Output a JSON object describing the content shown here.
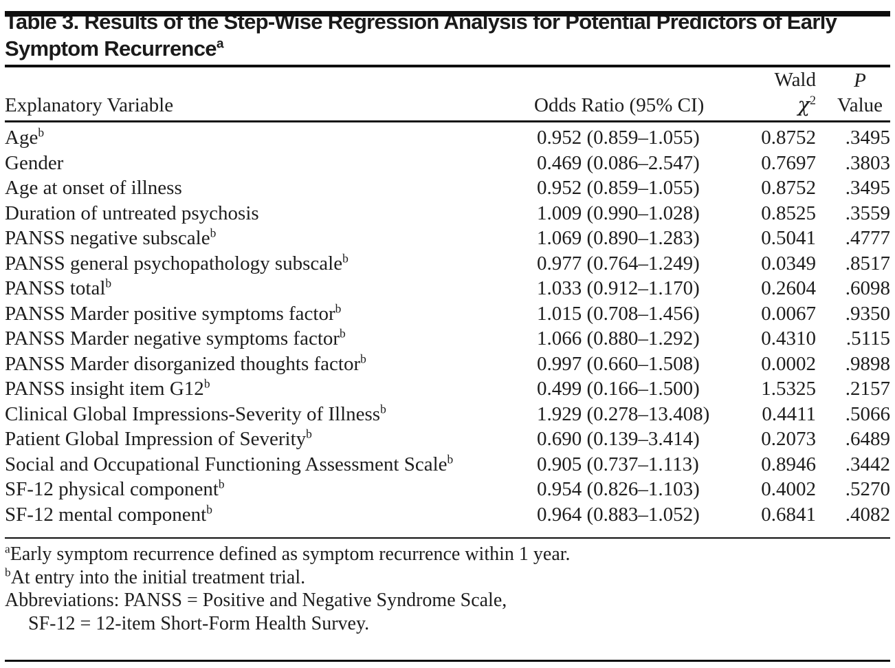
{
  "title": {
    "text": "Table 3. Results of the Step-Wise Regression Analysis for Potential Predictors of Early Symptom Recurrence",
    "sup": "a"
  },
  "headers": {
    "explanatory_variable": "Explanatory Variable",
    "odds_ratio": "Odds Ratio (95% CI)",
    "wald_line1": "Wald",
    "wald_chi": "χ",
    "wald_sup": "2",
    "p_line1": "P",
    "p_line2": "Value"
  },
  "rows": [
    {
      "variable": "Age",
      "sup": "b",
      "odds_ratio": "0.952 (0.859–1.055)",
      "wald_chi2": "0.8752",
      "p_value": ".3495"
    },
    {
      "variable": "Gender",
      "sup": "",
      "odds_ratio": "0.469 (0.086–2.547)",
      "wald_chi2": "0.7697",
      "p_value": ".3803"
    },
    {
      "variable": "Age at onset of illness",
      "sup": "",
      "odds_ratio": "0.952 (0.859–1.055)",
      "wald_chi2": "0.8752",
      "p_value": ".3495"
    },
    {
      "variable": "Duration of untreated psychosis",
      "sup": "",
      "odds_ratio": "1.009 (0.990–1.028)",
      "wald_chi2": "0.8525",
      "p_value": ".3559"
    },
    {
      "variable": "PANSS negative subscale",
      "sup": "b",
      "odds_ratio": "1.069 (0.890–1.283)",
      "wald_chi2": "0.5041",
      "p_value": ".4777"
    },
    {
      "variable": "PANSS general psychopathology subscale",
      "sup": "b",
      "odds_ratio": "0.977 (0.764–1.249)",
      "wald_chi2": "0.0349",
      "p_value": ".8517"
    },
    {
      "variable": "PANSS total",
      "sup": "b",
      "odds_ratio": "1.033 (0.912–1.170)",
      "wald_chi2": "0.2604",
      "p_value": ".6098"
    },
    {
      "variable": "PANSS Marder positive symptoms factor",
      "sup": "b",
      "odds_ratio": "1.015 (0.708–1.456)",
      "wald_chi2": "0.0067",
      "p_value": ".9350"
    },
    {
      "variable": "PANSS Marder negative symptoms factor",
      "sup": "b",
      "odds_ratio": "1.066 (0.880–1.292)",
      "wald_chi2": "0.4310",
      "p_value": ".5115"
    },
    {
      "variable": "PANSS Marder disorganized thoughts factor",
      "sup": "b",
      "odds_ratio": "0.997 (0.660–1.508)",
      "wald_chi2": "0.0002",
      "p_value": ".9898"
    },
    {
      "variable": "PANSS insight item G12",
      "sup": "b",
      "odds_ratio": "0.499 (0.166–1.500)",
      "wald_chi2": "1.5325",
      "p_value": ".2157"
    },
    {
      "variable": "Clinical Global Impressions-Severity of Illness",
      "sup": "b",
      "odds_ratio": "1.929 (0.278–13.408)",
      "wald_chi2": "0.4411",
      "p_value": ".5066"
    },
    {
      "variable": "Patient Global Impression of Severity",
      "sup": "b",
      "odds_ratio": "0.690 (0.139–3.414)",
      "wald_chi2": "0.2073",
      "p_value": ".6489"
    },
    {
      "variable": "Social and Occupational Functioning Assessment Scale",
      "sup": "b",
      "odds_ratio": "0.905 (0.737–1.113)",
      "wald_chi2": "0.8946",
      "p_value": ".3442"
    },
    {
      "variable": "SF-12 physical component",
      "sup": "b",
      "odds_ratio": "0.954 (0.826–1.103)",
      "wald_chi2": "0.4002",
      "p_value": ".5270"
    },
    {
      "variable": "SF-12 mental component",
      "sup": "b",
      "odds_ratio": "0.964 (0.883–1.052)",
      "wald_chi2": "0.6841",
      "p_value": ".4082"
    }
  ],
  "footnotes": [
    {
      "sup": "a",
      "text": "Early symptom recurrence defined as symptom recurrence within 1 year.",
      "indent": false
    },
    {
      "sup": "b",
      "text": "At entry into the initial treatment trial.",
      "indent": false
    },
    {
      "sup": "",
      "text": "Abbreviations: PANSS = Positive and Negative Syndrome Scale,",
      "indent": false
    },
    {
      "sup": "",
      "text": "SF-12 = 12-item Short-Form Health Survey.",
      "indent": true
    }
  ],
  "colors": {
    "text": "#1d1d1d",
    "rule": "#0e0e0e",
    "background": "#ffffff"
  }
}
